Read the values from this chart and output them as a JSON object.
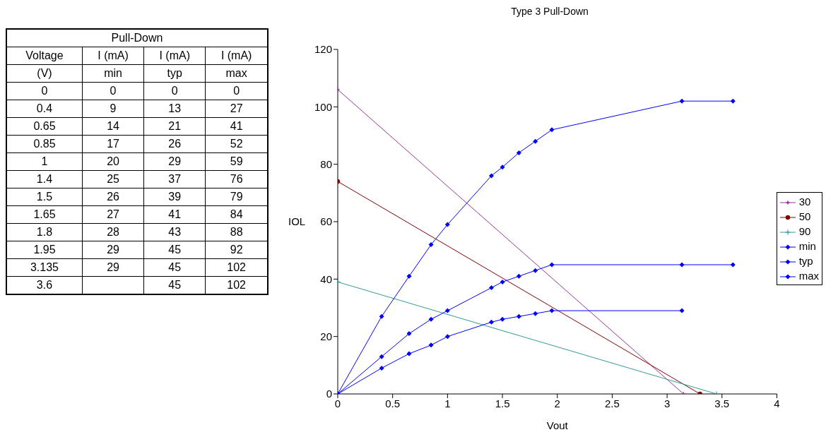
{
  "chart_data": [
    {
      "type": "other",
      "title": "Pull-Down",
      "annotations": [
        "Voltage",
        "I (mA)",
        "I (mA)",
        "I (mA)",
        "(V)",
        "min",
        "typ",
        "max"
      ],
      "categories": [
        "0",
        "0.4",
        "0.65",
        "0.85",
        "1",
        "1.4",
        "1.5",
        "1.65",
        "1.8",
        "1.95",
        "3.135",
        "3.6"
      ],
      "series": [
        {
          "values": [
            0,
            9,
            14,
            17,
            20,
            25,
            26,
            27,
            28,
            29,
            29,
            null
          ]
        },
        {
          "values": [
            0,
            13,
            21,
            26,
            29,
            37,
            39,
            41,
            43,
            45,
            45,
            45
          ]
        },
        {
          "values": [
            0,
            27,
            41,
            52,
            59,
            76,
            79,
            84,
            88,
            92,
            102,
            102
          ]
        }
      ],
      "data_labels": true
    },
    {
      "type": "line",
      "title": "Type 3 Pull-Down",
      "xlabel": "Vout",
      "ylabel": "IOL",
      "series": [
        {
          "name": "30",
          "color": "#993399",
          "marker": "star",
          "x": [
            0,
            3.15
          ],
          "values": [
            106,
            0
          ]
        },
        {
          "name": "50",
          "color": "#800000",
          "marker": "circle",
          "x": [
            0,
            3.3
          ],
          "values": [
            74,
            0
          ]
        },
        {
          "name": "90",
          "color": "#339999",
          "marker": "cross",
          "x": [
            0,
            3.45
          ],
          "values": [
            39,
            0
          ]
        },
        {
          "name": "min",
          "color": "#0000ff",
          "marker": "diamond",
          "x": [
            0,
            0.4,
            0.65,
            0.85,
            1,
            1.4,
            1.5,
            1.65,
            1.8,
            1.95,
            3.135
          ],
          "values": [
            0,
            9,
            14,
            17,
            20,
            25,
            26,
            27,
            28,
            29,
            29
          ]
        },
        {
          "name": "typ",
          "color": "#0000ff",
          "marker": "diamond",
          "x": [
            0,
            0.4,
            0.65,
            0.85,
            1,
            1.4,
            1.5,
            1.65,
            1.8,
            1.95,
            3.135,
            3.6
          ],
          "values": [
            0,
            13,
            21,
            26,
            29,
            37,
            39,
            41,
            43,
            45,
            45,
            45
          ]
        },
        {
          "name": "max",
          "color": "#0000ff",
          "marker": "diamond",
          "x": [
            0,
            0.4,
            0.65,
            0.85,
            1,
            1.4,
            1.5,
            1.65,
            1.8,
            1.95,
            3.135,
            3.6
          ],
          "values": [
            0,
            27,
            41,
            52,
            59,
            76,
            79,
            84,
            88,
            92,
            102,
            102
          ]
        }
      ],
      "xlim": [
        0,
        4
      ],
      "xticks": [
        0,
        0.5,
        1,
        1.5,
        2,
        2.5,
        3,
        3.5,
        4
      ],
      "ylim": [
        0,
        120
      ],
      "yticks": [
        0,
        20,
        40,
        60,
        80,
        100,
        120
      ],
      "grid": false,
      "legend": "right"
    }
  ]
}
